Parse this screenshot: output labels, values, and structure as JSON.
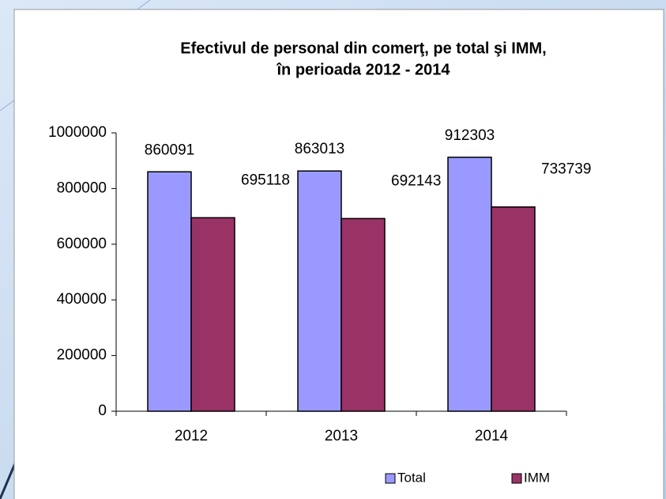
{
  "chart_data": {
    "type": "bar",
    "title": [
      "Efectivul de personal din comerţ, pe total şi IMM,",
      "în perioada 2012 - 2014"
    ],
    "categories": [
      "2012",
      "2013",
      "2014"
    ],
    "series": [
      {
        "name": "Total",
        "color": "#9999ff",
        "values": [
          860091,
          863013,
          912303
        ]
      },
      {
        "name": "IMM",
        "color": "#993366",
        "values": [
          695118,
          692143,
          733739
        ]
      }
    ],
    "ylim": [
      0,
      1000000
    ],
    "yticks": [
      0,
      200000,
      400000,
      600000,
      800000,
      1000000
    ],
    "legend": "bottom-right"
  }
}
